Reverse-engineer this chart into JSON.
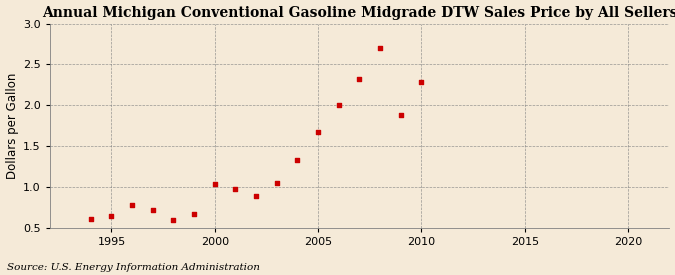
{
  "title": "Annual Michigan Conventional Gasoline Midgrade DTW Sales Price by All Sellers",
  "ylabel": "Dollars per Gallon",
  "source": "Source: U.S. Energy Information Administration",
  "background_color": "#f5ead8",
  "marker_color": "#cc0000",
  "years": [
    1994,
    1995,
    1996,
    1997,
    1998,
    1999,
    2000,
    2001,
    2002,
    2003,
    2004,
    2005,
    2006,
    2007,
    2008,
    2009,
    2010
  ],
  "values": [
    0.62,
    0.65,
    0.78,
    0.73,
    0.6,
    0.68,
    1.04,
    0.98,
    0.9,
    1.05,
    1.33,
    1.68,
    2.01,
    2.32,
    2.7,
    1.88,
    2.29
  ],
  "xlim": [
    1992,
    2022
  ],
  "ylim": [
    0.5,
    3.0
  ],
  "xticks": [
    1995,
    2000,
    2005,
    2010,
    2015,
    2020
  ],
  "yticks": [
    0.5,
    1.0,
    1.5,
    2.0,
    2.5,
    3.0
  ],
  "title_fontsize": 10,
  "label_fontsize": 8.5,
  "tick_fontsize": 8,
  "source_fontsize": 7.5
}
